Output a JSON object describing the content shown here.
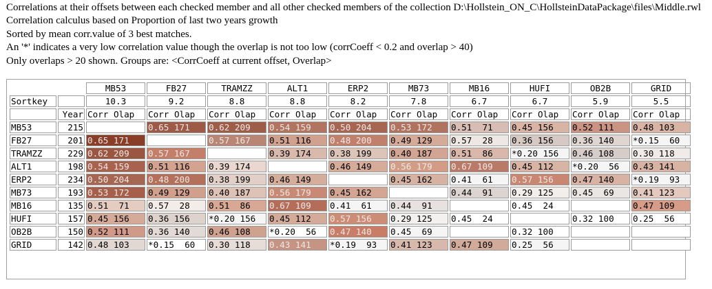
{
  "header_lines": [
    "Correlations at their offsets between each checked member and all other checked members of the collection D:\\Hollstein_ON_C\\HollsteinDataPackage\\files\\Middle.rwl",
    "Correlation calculus based on Proportion of last two years growth",
    "Sorted by mean corr.value of 3 best matches.",
    "An '*' indicates a very low correlation value though the overlap is not too low (corrCoeff < 0.2 and overlap > 40)",
    "Only overlaps > 20 shown. Groups are: <CorrCoeff at current offset, Overlap>"
  ],
  "table": {
    "sortkey_label": "Sortkey",
    "year_label": "Year",
    "corr_label": "Corr",
    "olap_label": "Olap",
    "columns": [
      "MB53",
      "FB27",
      "TRAMZZ",
      "ALT1",
      "ERP2",
      "MB73",
      "MB16",
      "HUFI",
      "OB2B",
      "GRID"
    ],
    "sortkeys": [
      "10.3",
      "9.2",
      "8.8",
      "8.8",
      "8.2",
      "7.8",
      "6.7",
      "6.7",
      "5.9",
      "5.5"
    ],
    "rows": [
      {
        "name": "MB53",
        "year": "215",
        "cells": [
          "",
          "0.65 171",
          "0.62 209",
          "0.54 159",
          "0.50 204",
          "0.53 172",
          "0.51  71",
          "0.45 156",
          "0.52 111",
          "0.48 103"
        ]
      },
      {
        "name": "FB27",
        "year": "201",
        "cells": [
          "0.65 171",
          "",
          "0.57 167",
          "0.51 116",
          "0.48 200",
          "0.49 129",
          "0.57  28",
          "0.36 156",
          "0.36 140",
          "*0.15  60"
        ]
      },
      {
        "name": "TRAMZZ",
        "year": "229",
        "cells": [
          "0.62 209",
          "0.57 167",
          "",
          "0.39 174",
          "0.38 199",
          "0.40 187",
          "0.51  86",
          "*0.20 156",
          "0.46 108",
          "0.30 118"
        ]
      },
      {
        "name": "ALT1",
        "year": "198",
        "cells": [
          "0.54 159",
          "0.51 116",
          "0.39 174",
          "",
          "0.46 149",
          "0.56 179",
          "0.67 109",
          "0.45 112",
          "*0.20  56",
          "0.43 141"
        ]
      },
      {
        "name": "ERP2",
        "year": "234",
        "cells": [
          "0.50 204",
          "0.48 200",
          "0.38 199",
          "0.46 149",
          "",
          "0.45 162",
          "0.41  61",
          "0.57 156",
          "0.47 140",
          "*0.19  93"
        ]
      },
      {
        "name": "MB73",
        "year": "193",
        "cells": [
          "0.53 172",
          "0.49 129",
          "0.40 187",
          "0.56 179",
          "0.45 162",
          "",
          "0.44  91",
          "0.29 125",
          "0.45  69",
          "0.41 123"
        ]
      },
      {
        "name": "MB16",
        "year": "135",
        "cells": [
          "0.51  71",
          "0.57  28",
          "0.51  86",
          "0.67 109",
          "0.41  61",
          "0.44  91",
          "",
          "0.45  24",
          "",
          "0.47 109"
        ]
      },
      {
        "name": "HUFI",
        "year": "157",
        "cells": [
          "0.45 156",
          "0.36 156",
          "*0.20 156",
          "0.45 112",
          "0.57 156",
          "0.29 125",
          "0.45  24",
          "",
          "0.32 100",
          "0.25  56"
        ]
      },
      {
        "name": "OB2B",
        "year": "150",
        "cells": [
          "0.52 111",
          "0.36 140",
          "0.46 108",
          "*0.20  56",
          "0.47 140",
          "0.45  69",
          "",
          "0.32 100",
          "",
          ""
        ]
      },
      {
        "name": "GRID",
        "year": "142",
        "cells": [
          "0.48 103",
          "*0.15  60",
          "0.30 118",
          "0.43 141",
          "*0.19  93",
          "0.41 123",
          "0.47 109",
          "0.25  56",
          "",
          ""
        ]
      }
    ],
    "cell_colors": [
      [
        "#ffffff",
        "#9c5a47",
        "#9e5d49",
        "#b17460",
        "#a76651",
        "#b07360",
        "#d7bdb3",
        "#d9b3a3",
        "#cb9382",
        "#d9b3a3"
      ],
      [
        "#8a3d27",
        "#ffffff",
        "#b98574",
        "#d0a18e",
        "#c0806c",
        "#d5aa99",
        "#eee8e4",
        "#d6c9c3",
        "#e0d6d1",
        "#f5f5f5"
      ],
      [
        "#9b5641",
        "#c37f69",
        "#ffffff",
        "#d9b9ab",
        "#ddc4b9",
        "#d2a493",
        "#d9b8ab",
        "#f5f5f5",
        "#d6ccc8",
        "#f0ebe8"
      ],
      [
        "#a8624e",
        "#d3a390",
        "#e9d7d0",
        "#ffffff",
        "#d6ab99",
        "#d29c87",
        "#b97b67",
        "#d7b4a4",
        "#f5f5f5",
        "#d8b3a3"
      ],
      [
        "#a76651",
        "#b4705b",
        "#e2cfc7",
        "#d5ad9b",
        "#ffffff",
        "#d6b2a3",
        "#f5f5f5",
        "#c98671",
        "#d8b3a3",
        "#f5f5f5"
      ],
      [
        "#a55f4a",
        "#d1a08d",
        "#dfc2b6",
        "#c98a75",
        "#d3a592",
        "#ffffff",
        "#dcd4d1",
        "#f1eeec",
        "#eae6e4",
        "#e3c9be"
      ],
      [
        "#e5ccc1",
        "#f3ede9",
        "#d8a894",
        "#b46d58",
        "#f5f5f5",
        "#e7e2df",
        "#ffffff",
        "#ffffff",
        "#ffffff",
        "#d79c88"
      ],
      [
        "#d6aa98",
        "#ddd2cc",
        "#f5f5f5",
        "#d4ab99",
        "#cc8c76",
        "#f3f1ef",
        "#ffffff",
        "#ffffff",
        "#ffffff",
        "#ffffff"
      ],
      [
        "#d19987",
        "#e3dad6",
        "#cfa18f",
        "#ffffff",
        "#c97d66",
        "#f5f5f5",
        "#ffffff",
        "#ffffff",
        "#ffffff",
        "#ffffff"
      ],
      [
        "#e1d7d3",
        "#ffffff",
        "#e6dcd8",
        "#c59483",
        "#f5f5f5",
        "#d8b8ac",
        "#d2aa9a",
        "#f5f5f5",
        "#ffffff",
        "#ffffff"
      ]
    ],
    "light_text_threshold_hex": [
      "#9c5a47",
      "#9e5d49",
      "#b17460",
      "#a76651",
      "#b07360",
      "#8a3d27",
      "#b98574",
      "#c0806c",
      "#9b5641",
      "#c37f69",
      "#a8624e",
      "#d29c87",
      "#b97b67",
      "#b4705b",
      "#c98671",
      "#a55f4a",
      "#c98a75",
      "#b46d58",
      "#cc8c76",
      "#c97d66",
      "#c59483"
    ]
  }
}
